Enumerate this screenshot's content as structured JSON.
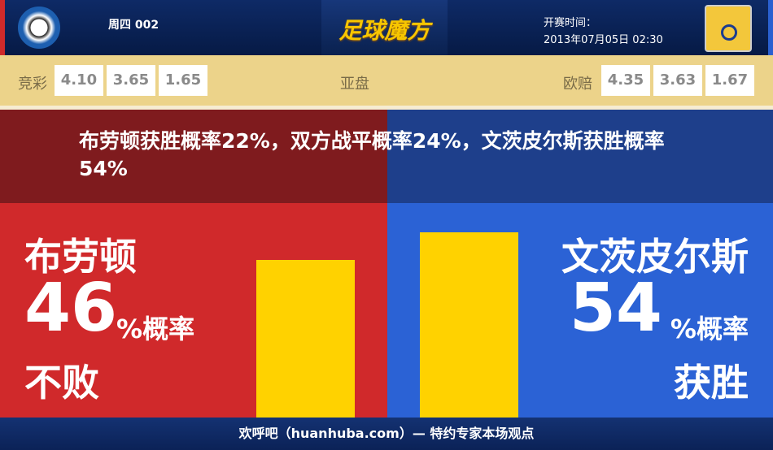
{
  "header": {
    "match_no": "周四 002",
    "logo": "足球魔方",
    "kickoff_label": "开赛时间：",
    "kickoff_time": "2013年07月05日 02:30"
  },
  "odds": {
    "jingcai_label": "竞彩",
    "jingcai": [
      "4.10",
      "3.65",
      "1.65"
    ],
    "asian_label": "亚盘",
    "euro_label": "欧赔",
    "euro": [
      "4.35",
      "3.63",
      "1.67"
    ]
  },
  "summary": "布劳顿获胜概率22%，双方战平概率24%，文茨皮尔斯获胜概率54%",
  "home": {
    "name": "布劳顿",
    "percent": "46",
    "percent_suffix": "%概率",
    "outcome": "不败",
    "value": 46
  },
  "away": {
    "name": "文茨皮尔斯",
    "percent": "54",
    "percent_suffix": "%概率",
    "outcome": "获胜",
    "value": 54
  },
  "colors": {
    "home": "#d0292b",
    "away": "#2b62d5",
    "bar": "#ffd200"
  },
  "footer": "欢呼吧（huanhuba.com）— 特约专家本场观点"
}
